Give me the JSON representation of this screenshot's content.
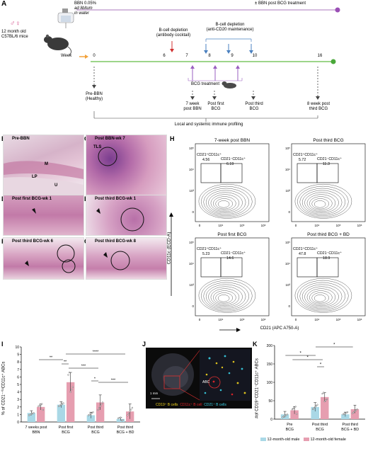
{
  "panel_letters": {
    "A": "A",
    "B": "B",
    "C": "C",
    "D": "D",
    "E": "E",
    "F": "F",
    "G": "G",
    "H": "H",
    "I": "I",
    "J": "J",
    "K": "K"
  },
  "panel_a": {
    "bbn_line1": "BBN 0.05%",
    "bbn_line2": "ad libitum",
    "bbn_line3": "in water",
    "bbn_post": "± BBN post BCG treatment",
    "mice_line1": "12 month old",
    "mice_line2": "C57BL/6 mice",
    "sex_symbols": "♂♀",
    "week_label": "Week",
    "weeks": [
      "0",
      "6",
      "7",
      "8",
      "9",
      "10",
      "16"
    ],
    "bcell_cocktail_1": "B-cell depletion",
    "bcell_cocktail_2": "(antibody cocktail)",
    "bcell_anti_1": "B-cell depletion",
    "bcell_anti_2": "(anti-CD20 maintenance)",
    "bcg_treatment": "BCG treatment",
    "timepoints": [
      {
        "l1": "Pre-BBN",
        "l2": "(Healthy)"
      },
      {
        "l1": "7 week",
        "l2": "post BBN"
      },
      {
        "l1": "Post first",
        "l2": "BCG"
      },
      {
        "l1": "Post third",
        "l2": "BCG"
      },
      {
        "l1": "8 week post",
        "l2": "third BCG"
      }
    ],
    "profiling": "Local and systemic immune profiling"
  },
  "histology": {
    "B": {
      "title": "Pre-BBN",
      "marks": [
        "M",
        "LP",
        "U"
      ]
    },
    "C": {
      "title": "Post BBN-wk 7",
      "marks": [
        "TLS"
      ]
    },
    "D": {
      "title": "Post first BCG-wk 1"
    },
    "E": {
      "title": "Post third BCG-wk 1"
    },
    "F": {
      "title": "Post third BCG-wk 6"
    },
    "G": {
      "title": "Post third BCG-wk 8"
    }
  },
  "flow": {
    "y_axis": "CD11c (ECD-A)",
    "x_axis": "CD21 (APC A750-A)",
    "y_ticks": [
      "10⁵",
      "10⁴",
      "10³",
      "0"
    ],
    "x_ticks": [
      "0",
      "10⁴",
      "10⁵",
      "10⁶"
    ],
    "plots": [
      {
        "title": "7-week post BBN",
        "gate_a": "CD21⁺CD11c⁺",
        "val_a": "4.56",
        "gate_b": "CD21⁻CD11c⁺",
        "val_b": "6.19"
      },
      {
        "title": "Post third BCG",
        "gate_a": "CD21⁺CD11c⁺",
        "val_a": "5.72",
        "gate_b": "CD21⁻CD11c⁺",
        "val_b": "11.3"
      },
      {
        "title": "Post first BCG",
        "gate_a": "CD21⁺CD11c⁺",
        "val_a": "5.23",
        "gate_b": "CD21⁻CD11c⁺",
        "val_b": "14.6"
      },
      {
        "title": "Post third BCG + BD",
        "gate_a": "CD21⁺CD11c⁺",
        "val_a": "47.8",
        "gate_b": "CD21⁻CD11c⁺",
        "val_b": "18.9"
      }
    ]
  },
  "panel_j": {
    "scale": "1 mm",
    "abc": "ABC",
    "legend_1": "CD19⁺ B cells",
    "legend_2": "CD11c⁺ B cell",
    "legend_3": "CD21⁺ B cells",
    "color_1": "#f2d41e",
    "color_2": "#e8242a",
    "color_3": "#3ad1e6"
  },
  "chart_data": [
    {
      "type": "bar",
      "panel": "I",
      "ylabel": "% of CD21⁻ᐟˡᵒCD11c⁺ ABCs",
      "ylim": [
        0,
        10
      ],
      "yticks": [
        "0",
        "1",
        "2",
        "3",
        "4",
        "5",
        "6",
        "7",
        "8",
        "9",
        "10"
      ],
      "categories": [
        [
          "7 weeks post",
          "BBN"
        ],
        [
          "Post first",
          "BCG"
        ],
        [
          "Post third",
          "BCG"
        ],
        [
          "Post third",
          "BCG + BD"
        ]
      ],
      "series": [
        {
          "values": [
            1.2,
            2.3,
            0.9,
            0.4
          ],
          "err": [
            0.3,
            0.4,
            0.4,
            0.2
          ],
          "color": "#a9d8e6"
        },
        {
          "values": [
            2.0,
            5.3,
            2.6,
            1.4
          ],
          "err": [
            0.4,
            1.3,
            1.0,
            1.0
          ],
          "color": "#e69eb0"
        }
      ],
      "sig": [
        "**",
        "**",
        "***",
        "*",
        "***",
        "****"
      ]
    },
    {
      "type": "bar",
      "panel": "K",
      "ylabel": "#of CD19⁺CD21⁻CD11c⁺ ABCs",
      "ylim": [
        0,
        200
      ],
      "yticks": [
        "0",
        "50",
        "100",
        "150",
        "200"
      ],
      "categories": [
        [
          "Pre",
          "BCG"
        ],
        [
          "Post third",
          "BCG"
        ],
        [
          "Post third",
          "BCG + BD"
        ]
      ],
      "series": [
        {
          "name": "12-month-old male",
          "values": [
            13,
            33,
            13
          ],
          "err": [
            8,
            12,
            6
          ],
          "color": "#a9d8e6"
        },
        {
          "name": "12-month-old female",
          "values": [
            24,
            60,
            27
          ],
          "err": [
            10,
            12,
            11
          ],
          "color": "#e69eb0"
        }
      ],
      "sig": [
        "*",
        "*",
        "*",
        "*"
      ]
    }
  ]
}
